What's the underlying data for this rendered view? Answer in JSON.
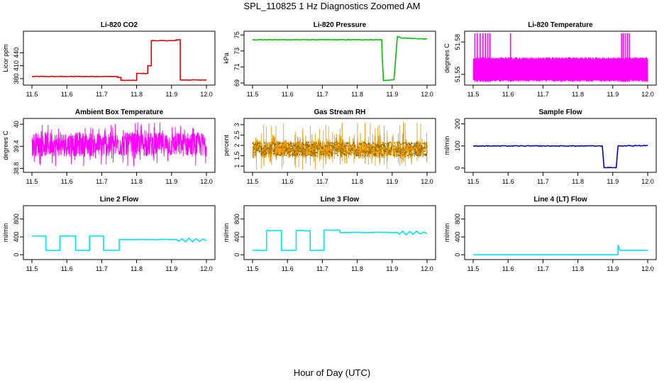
{
  "title": "SPL_110825 1 Hz Diagnostics Zoomed AM",
  "xlabel": "Hour of Day (UTC)",
  "chart_data": [
    {
      "type": "line",
      "title": "Li-820 CO2",
      "ylabel": "Licor ppm",
      "color": "#e00000",
      "xlim": [
        11.5,
        12.0
      ],
      "xticks": [
        "11.5",
        "11.6",
        "11.7",
        "11.8",
        "11.9",
        "12.0"
      ],
      "ylim": [
        370,
        485
      ],
      "yticks": [
        380,
        410,
        440
      ],
      "noise": 0.6,
      "series": [
        {
          "x": [
            11.5,
            11.745,
            11.745,
            11.755,
            11.755,
            11.8,
            11.8,
            11.832,
            11.832,
            11.842,
            11.842,
            11.913,
            11.913,
            11.925,
            11.925,
            12.0
          ],
          "y": [
            385,
            385,
            383,
            383,
            376,
            376,
            392,
            392,
            410,
            410,
            468,
            468,
            470,
            470,
            377,
            377
          ]
        }
      ]
    },
    {
      "type": "line",
      "title": "Li-820 Pressure",
      "ylabel": "kPa",
      "color": "#00c000",
      "xlim": [
        11.5,
        12.0
      ],
      "xticks": [
        "11.5",
        "11.6",
        "11.7",
        "11.8",
        "11.9",
        "12.0"
      ],
      "ylim": [
        69,
        75.2
      ],
      "yticks": [
        69,
        71,
        73,
        75
      ],
      "noise": 0.03,
      "series": [
        {
          "x": [
            11.5,
            11.87,
            11.872,
            11.875,
            11.905,
            11.91,
            11.915,
            11.93,
            12.0
          ],
          "y": [
            74.4,
            74.4,
            72.0,
            69.3,
            69.4,
            72.0,
            74.8,
            74.6,
            74.5
          ]
        }
      ]
    },
    {
      "type": "line",
      "title": "Li-820 Temperature",
      "ylabel": "degrees C",
      "color": "#ff00ff",
      "xlim": [
        11.5,
        12.0
      ],
      "xticks": [
        "11.5",
        "11.6",
        "11.7",
        "11.8",
        "11.9",
        "12.0"
      ],
      "ylim": [
        51.542,
        51.588
      ],
      "yticks": [
        51.55,
        51.58
      ],
      "band": [
        51.543,
        51.566
      ],
      "spikes": [
        11.505,
        11.512,
        11.52,
        11.528,
        11.535,
        11.542,
        11.548,
        11.607,
        11.925,
        11.93,
        11.936,
        11.942,
        11.948
      ],
      "spike_top": 51.588
    },
    {
      "type": "line",
      "title": "Ambient Box Temperature",
      "ylabel": "degrees C",
      "color": "#ff00ff",
      "xlim": [
        11.5,
        12.0
      ],
      "xticks": [
        "11.5",
        "11.6",
        "11.7",
        "11.8",
        "11.9",
        "12.0"
      ],
      "ylim": [
        38.75,
        40.1
      ],
      "yticks": [
        38.8,
        39.4,
        40.0
      ],
      "band": [
        38.85,
        40.05
      ],
      "center": 39.45
    },
    {
      "type": "line",
      "title": "Gas Stream RH",
      "ylabel": "percent",
      "color": "#e69500",
      "xlim": [
        11.5,
        12.0
      ],
      "xticks": [
        "11.5",
        "11.6",
        "11.7",
        "11.8",
        "11.9",
        "12.0"
      ],
      "ylim": [
        0.8,
        3.2
      ],
      "yticks": [
        1.0,
        1.5,
        2.0,
        2.5,
        3.0
      ],
      "band": [
        1.05,
        2.6
      ],
      "center": 1.8,
      "spike_top": 3.15
    },
    {
      "type": "line",
      "title": "Sample Flow",
      "ylabel": "ml/min",
      "color": "#0000d0",
      "xlim": [
        11.5,
        12.0
      ],
      "xticks": [
        "11.5",
        "11.6",
        "11.7",
        "11.8",
        "11.9",
        "12.0"
      ],
      "ylim": [
        -10,
        215
      ],
      "yticks": [
        0,
        100,
        200
      ],
      "noise": 1.5,
      "series": [
        {
          "x": [
            11.5,
            11.87,
            11.875,
            11.91,
            11.915,
            12.0
          ],
          "y": [
            100,
            100,
            2,
            2,
            100,
            102
          ]
        }
      ]
    },
    {
      "type": "line",
      "title": "Line 2 Flow",
      "ylabel": "ml/min",
      "color": "#00e5ee",
      "xlim": [
        11.5,
        12.0
      ],
      "xticks": [
        "11.5",
        "11.6",
        "11.7",
        "11.8",
        "11.9",
        "12.0"
      ],
      "ylim": [
        -60,
        1050
      ],
      "yticks": [
        0,
        400,
        800
      ],
      "noise": 6,
      "series": [
        {
          "x": [
            11.5,
            11.54,
            11.54,
            11.58,
            11.58,
            11.625,
            11.625,
            11.665,
            11.665,
            11.705,
            11.705,
            11.75,
            11.75,
            11.915,
            11.92,
            11.93,
            11.94,
            11.95,
            11.96,
            11.97,
            11.98,
            11.99,
            12.0
          ],
          "y": [
            420,
            420,
            100,
            100,
            420,
            420,
            100,
            100,
            420,
            420,
            100,
            100,
            340,
            340,
            300,
            360,
            290,
            370,
            290,
            360,
            300,
            350,
            320
          ]
        }
      ]
    },
    {
      "type": "line",
      "title": "Line 3 Flow",
      "ylabel": "ml/min",
      "color": "#00e5ee",
      "xlim": [
        11.5,
        12.0
      ],
      "xticks": [
        "11.5",
        "11.6",
        "11.7",
        "11.8",
        "11.9",
        "12.0"
      ],
      "ylim": [
        -60,
        1050
      ],
      "yticks": [
        0,
        400,
        800
      ],
      "noise": 8,
      "series": [
        {
          "x": [
            11.5,
            11.54,
            11.54,
            11.583,
            11.583,
            11.625,
            11.625,
            11.665,
            11.665,
            11.705,
            11.705,
            11.75,
            11.75,
            11.915,
            11.92,
            11.93,
            11.94,
            11.95,
            11.96,
            11.97,
            11.98,
            11.99,
            12.0
          ],
          "y": [
            100,
            100,
            540,
            540,
            100,
            100,
            540,
            540,
            100,
            100,
            550,
            550,
            500,
            500,
            460,
            530,
            450,
            520,
            460,
            530,
            470,
            510,
            480
          ]
        }
      ]
    },
    {
      "type": "line",
      "title": "Line 4 (LT) Flow",
      "ylabel": "ml/min",
      "color": "#00e5ee",
      "xlim": [
        11.5,
        12.0
      ],
      "xticks": [
        "11.5",
        "11.6",
        "11.7",
        "11.8",
        "11.9",
        "12.0"
      ],
      "ylim": [
        -60,
        1050
      ],
      "yticks": [
        0,
        400,
        800
      ],
      "noise": 0,
      "series": [
        {
          "x": [
            11.5,
            11.915,
            11.915,
            11.92,
            11.92,
            12.0
          ],
          "y": [
            0,
            0,
            220,
            100,
            100,
            100
          ]
        }
      ]
    }
  ]
}
